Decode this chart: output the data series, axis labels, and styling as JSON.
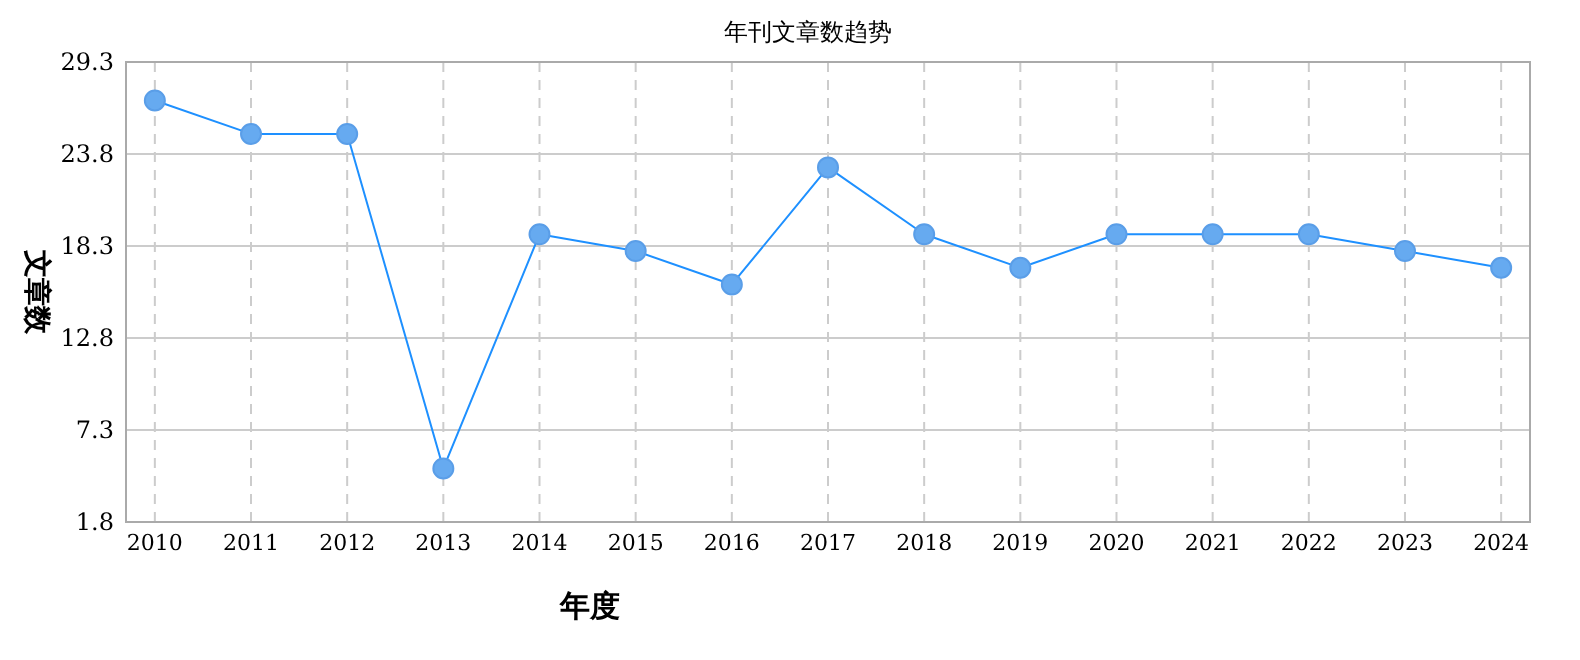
{
  "chart_data": {
    "type": "line",
    "title": "年刊文章数趋势",
    "xlabel": "年度",
    "ylabel": "文章数",
    "categories": [
      "2010",
      "2011",
      "2012",
      "2013",
      "2014",
      "2015",
      "2016",
      "2017",
      "2018",
      "2019",
      "2020",
      "2021",
      "2022",
      "2023",
      "2024"
    ],
    "series": [
      {
        "color": "#1e90ff",
        "values": [
          27,
          25,
          25,
          5,
          19,
          18,
          16,
          23,
          19,
          17,
          19,
          19,
          19,
          18,
          17
        ]
      }
    ],
    "ylim": [
      1.8,
      29.3
    ],
    "yticks": [
      1.8,
      7.3,
      12.8,
      18.3,
      23.8,
      29.3
    ],
    "grid": true,
    "marker": "circle",
    "line_style": "solid"
  }
}
